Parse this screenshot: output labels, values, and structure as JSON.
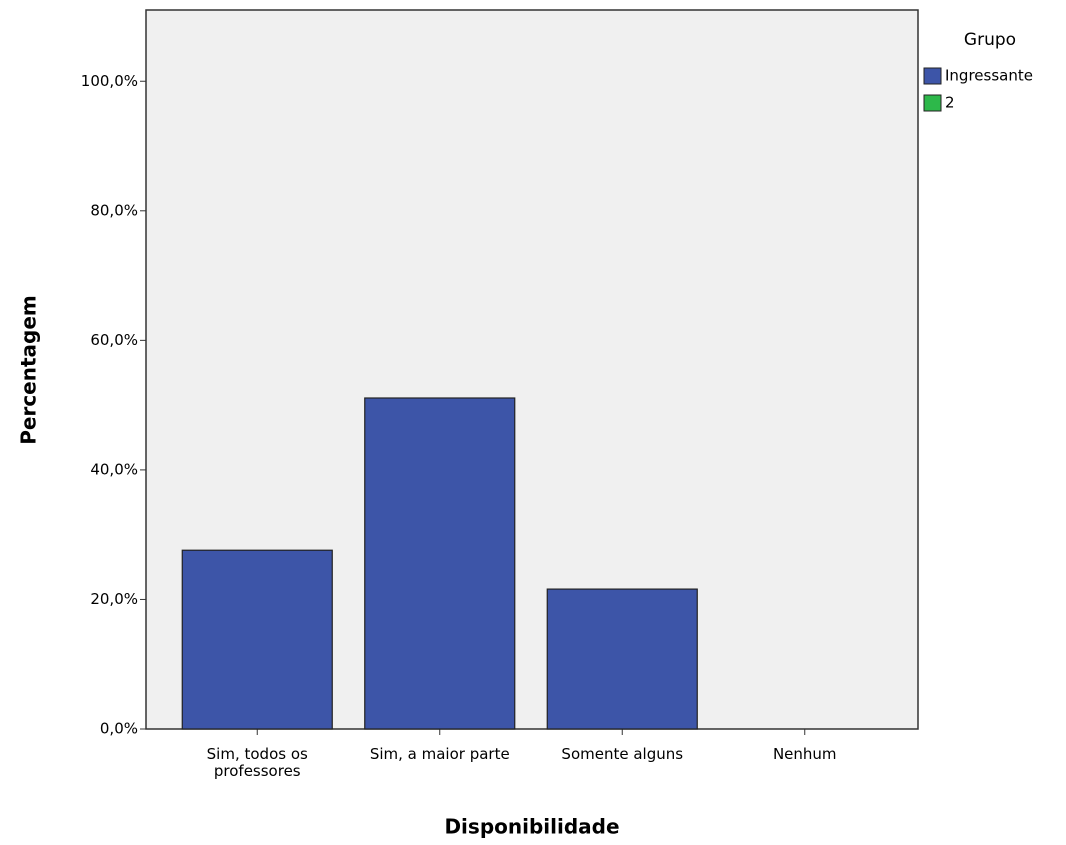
{
  "chart_data": {
    "type": "bar",
    "x_label": "Disponibilidade",
    "y_label": "Percentagem",
    "legend_title": "Grupo",
    "categories": [
      "Sim, todos os professores",
      "Sim, a maior parte",
      "Somente alguns",
      "Nenhum"
    ],
    "series": [
      {
        "name": "Ingressante",
        "color": "#3d55a8",
        "values": [
          27.6,
          51.1,
          21.6,
          0
        ]
      },
      {
        "name": "2",
        "color": "#2db84a",
        "values": [
          null,
          null,
          null,
          null
        ]
      }
    ],
    "ylim": [
      0,
      111
    ],
    "yticks": [
      {
        "value": 0,
        "label": "0,0%"
      },
      {
        "value": 20,
        "label": "20,0%"
      },
      {
        "value": 40,
        "label": "40,0%"
      },
      {
        "value": 60,
        "label": "60,0%"
      },
      {
        "value": 80,
        "label": "80,0%"
      },
      {
        "value": 100,
        "label": "100,0%"
      }
    ],
    "legend_position": "right",
    "grid": false
  }
}
